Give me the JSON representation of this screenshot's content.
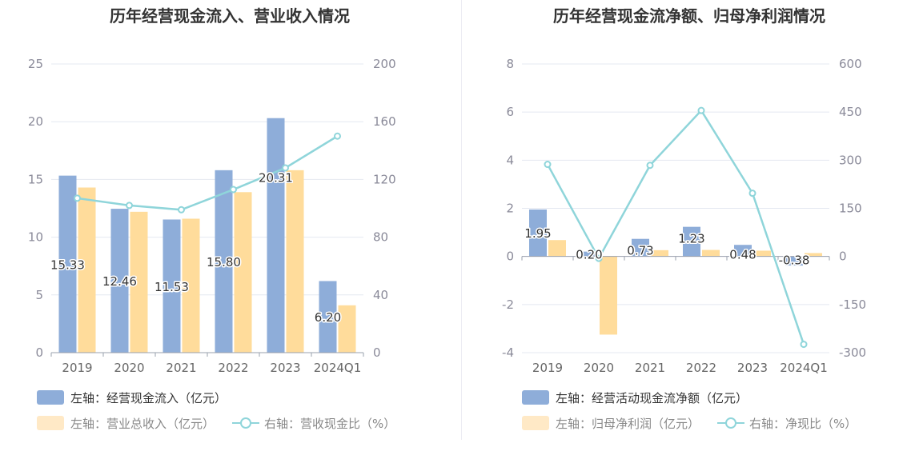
{
  "colors": {
    "bar1": "#8eadd9",
    "bar2": "#ffdc9b",
    "line": "#8fd5da",
    "grid": "#e4e8f1",
    "axis": "#9aa0ad"
  },
  "charts": [
    {
      "title": "历年经营现金流入、营业收入情况",
      "legend": [
        {
          "label": "左轴：经营现金流入（亿元）",
          "kind": "bar1"
        },
        {
          "label": "左轴：营业总收入（亿元）",
          "kind": "bar2"
        },
        {
          "label": "右轴：营收现金比（%）",
          "kind": "line"
        }
      ],
      "left_ticks": [
        "0",
        "5",
        "10",
        "15",
        "20",
        "25"
      ],
      "right_ticks": [
        "0",
        "40",
        "80",
        "120",
        "160",
        "200"
      ]
    },
    {
      "title": "历年经营现金流净额、归母净利润情况",
      "legend": [
        {
          "label": "左轴：经营活动现金流净额（亿元）",
          "kind": "bar1"
        },
        {
          "label": "左轴：归母净利润（亿元）",
          "kind": "bar2"
        },
        {
          "label": "右轴：净现比（%）",
          "kind": "line"
        }
      ],
      "left_ticks": [
        "-4",
        "-2",
        "0",
        "2",
        "4",
        "6",
        "8"
      ],
      "right_ticks": [
        "-300",
        "-150",
        "0",
        "150",
        "300",
        "450",
        "600"
      ]
    }
  ],
  "chart_data": [
    {
      "type": "bar",
      "title": "历年经营现金流入、营业收入情况",
      "categories": [
        "2019",
        "2020",
        "2021",
        "2022",
        "2023",
        "2024Q1"
      ],
      "series": [
        {
          "name": "经营现金流入（亿元）",
          "axis": "left",
          "type": "bar",
          "values": [
            15.33,
            12.46,
            11.53,
            15.8,
            20.31,
            6.2
          ],
          "labels": [
            "15.33",
            "12.46",
            "11.53",
            "15.80",
            "20.31",
            "6.20"
          ]
        },
        {
          "name": "营业总收入（亿元）",
          "axis": "left",
          "type": "bar",
          "values": [
            14.3,
            12.2,
            11.6,
            13.9,
            15.8,
            4.1
          ]
        },
        {
          "name": "营收现金比（%）",
          "axis": "right",
          "type": "line",
          "values": [
            107,
            102,
            99,
            113,
            128,
            150
          ]
        }
      ],
      "ylim_left": [
        0,
        25
      ],
      "ylim_right": [
        0,
        200
      ],
      "legend_position": "bottom",
      "grid": true
    },
    {
      "type": "bar",
      "title": "历年经营现金流净额、归母净利润情况",
      "categories": [
        "2019",
        "2020",
        "2021",
        "2022",
        "2023",
        "2024Q1"
      ],
      "series": [
        {
          "name": "经营活动现金流净额（亿元）",
          "axis": "left",
          "type": "bar",
          "values": [
            1.95,
            0.2,
            0.73,
            1.23,
            0.48,
            -0.38
          ],
          "labels": [
            "1.95",
            "0.20",
            "0.73",
            "1.23",
            "0.48",
            "-0.38"
          ]
        },
        {
          "name": "归母净利润（亿元）",
          "axis": "left",
          "type": "bar",
          "values": [
            0.68,
            -3.25,
            0.26,
            0.27,
            0.24,
            0.14
          ]
        },
        {
          "name": "净现比（%）",
          "axis": "right",
          "type": "line",
          "values": [
            287,
            -6,
            284,
            455,
            197,
            -274
          ]
        }
      ],
      "ylim_left": [
        -4,
        8
      ],
      "ylim_right": [
        -300,
        600
      ],
      "legend_position": "bottom",
      "grid": true
    }
  ]
}
